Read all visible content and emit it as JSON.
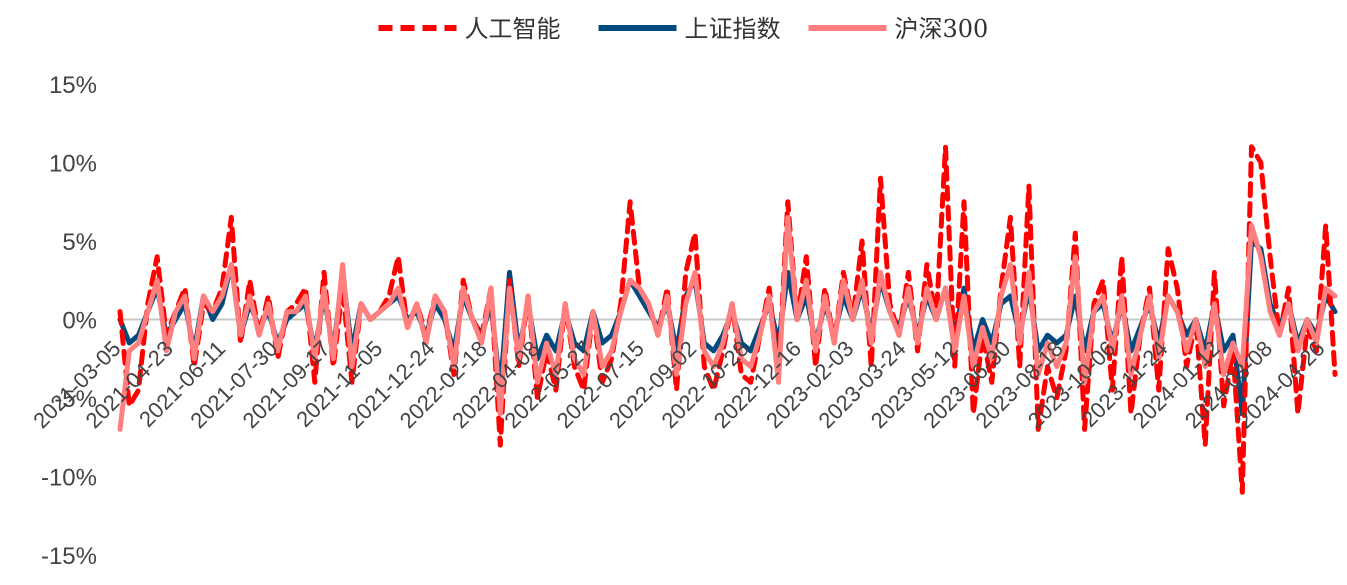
{
  "chart_data": {
    "type": "line",
    "title": "",
    "xlabel": "",
    "ylabel": "",
    "ylim": [
      -0.15,
      0.15
    ],
    "y_ticks": [
      0.15,
      0.1,
      0.05,
      0.0,
      -0.05,
      -0.1,
      -0.15
    ],
    "y_tick_labels": [
      "15%",
      "10%",
      "5%",
      "0%",
      "-5%",
      "-10%",
      "-15%"
    ],
    "grid": false,
    "zero_line": true,
    "legend_position": "top-center",
    "x_tick_labels": [
      "2021-03-05",
      "2021-04-23",
      "2021-06-11",
      "2021-07-30",
      "2021-09-17",
      "2021-11-05",
      "2021-12-24",
      "2022-02-18",
      "2022-04-08",
      "2022-05-27",
      "2022-07-15",
      "2022-09-02",
      "2022-10-28",
      "2022-12-16",
      "2023-02-03",
      "2023-03-24",
      "2023-05-12",
      "2023-06-30",
      "2023-08-18",
      "2023-10-06",
      "2023-11-24",
      "2024-01-12",
      "2024-03-08",
      "2024-04-26"
    ],
    "series": [
      {
        "name": "人工智能",
        "color": "#FF0000",
        "style": "dashed",
        "values": [
          0.005,
          -0.055,
          -0.045,
          0.01,
          0.04,
          -0.01,
          0.005,
          0.02,
          -0.03,
          0.01,
          0.005,
          0.02,
          0.065,
          -0.015,
          0.025,
          -0.01,
          0.015,
          -0.025,
          0.005,
          0.01,
          0.02,
          -0.04,
          0.03,
          -0.03,
          0.02,
          -0.04,
          0.01,
          0.0,
          0.005,
          0.015,
          0.04,
          -0.005,
          0.01,
          -0.01,
          0.015,
          0.005,
          -0.035,
          0.025,
          0.0,
          -0.01,
          0.02,
          -0.08,
          0.025,
          -0.03,
          0.015,
          -0.05,
          -0.02,
          -0.045,
          0.01,
          -0.03,
          -0.045,
          0.005,
          -0.04,
          -0.025,
          0.01,
          0.075,
          0.02,
          0.01,
          -0.01,
          0.02,
          -0.045,
          0.03,
          0.055,
          -0.03,
          -0.045,
          -0.02,
          0.01,
          -0.035,
          -0.04,
          -0.01,
          0.02,
          -0.035,
          0.075,
          0.0,
          0.04,
          -0.03,
          0.02,
          -0.015,
          0.03,
          0.0,
          0.05,
          -0.03,
          0.09,
          0.01,
          -0.01,
          0.03,
          -0.02,
          0.035,
          0.0,
          0.11,
          -0.03,
          0.075,
          -0.06,
          -0.01,
          -0.04,
          0.02,
          0.065,
          -0.03,
          0.085,
          -0.07,
          -0.03,
          -0.05,
          -0.02,
          0.055,
          -0.07,
          0.01,
          0.025,
          -0.045,
          0.04,
          -0.06,
          -0.01,
          0.02,
          -0.045,
          0.045,
          0.02,
          -0.03,
          0.0,
          -0.08,
          0.03,
          -0.055,
          -0.02,
          -0.11,
          0.11,
          0.1,
          0.04,
          -0.01,
          0.02,
          -0.06,
          -0.005,
          -0.02,
          0.06,
          -0.035
        ]
      },
      {
        "name": "上证指数",
        "color": "#004A7F",
        "style": "solid",
        "values": [
          0.0,
          -0.015,
          -0.01,
          0.005,
          0.02,
          -0.01,
          0.0,
          0.01,
          -0.02,
          0.015,
          0.0,
          0.01,
          0.035,
          -0.01,
          0.01,
          -0.005,
          0.005,
          -0.015,
          0.0,
          0.005,
          0.01,
          -0.02,
          0.015,
          -0.02,
          0.03,
          -0.02,
          0.01,
          0.0,
          0.005,
          0.01,
          0.015,
          0.0,
          0.005,
          -0.01,
          0.01,
          0.0,
          -0.02,
          0.015,
          0.0,
          -0.01,
          0.01,
          -0.045,
          0.03,
          -0.02,
          0.01,
          -0.025,
          -0.01,
          -0.02,
          0.005,
          -0.015,
          -0.02,
          0.005,
          -0.015,
          -0.01,
          0.005,
          0.025,
          0.015,
          0.005,
          -0.005,
          0.01,
          -0.02,
          0.015,
          0.025,
          -0.015,
          -0.02,
          -0.01,
          0.005,
          -0.015,
          -0.02,
          -0.005,
          0.01,
          -0.015,
          0.03,
          0.0,
          0.015,
          -0.015,
          0.01,
          -0.01,
          0.015,
          0.0,
          0.02,
          -0.01,
          0.025,
          0.005,
          -0.005,
          0.015,
          -0.01,
          0.015,
          0.0,
          0.02,
          -0.01,
          0.02,
          -0.02,
          0.0,
          -0.015,
          0.01,
          0.015,
          -0.01,
          0.02,
          -0.02,
          -0.01,
          -0.015,
          -0.01,
          0.015,
          -0.02,
          0.005,
          0.01,
          -0.015,
          0.01,
          -0.02,
          -0.005,
          0.01,
          -0.015,
          0.015,
          0.005,
          -0.01,
          0.0,
          -0.02,
          0.01,
          -0.02,
          -0.01,
          -0.06,
          0.05,
          0.045,
          0.01,
          -0.005,
          0.01,
          -0.015,
          0.0,
          -0.01,
          0.015,
          0.005
        ]
      },
      {
        "name": "沪深300",
        "color": "#FF7F7F",
        "style": "solid",
        "values": [
          -0.07,
          -0.02,
          -0.015,
          0.005,
          0.025,
          -0.02,
          0.005,
          0.015,
          -0.025,
          0.015,
          0.005,
          0.015,
          0.035,
          -0.01,
          0.015,
          -0.01,
          0.01,
          -0.02,
          0.005,
          0.005,
          0.015,
          -0.025,
          0.02,
          -0.025,
          0.035,
          -0.03,
          0.01,
          0.0,
          0.005,
          0.01,
          0.02,
          -0.005,
          0.01,
          -0.015,
          0.015,
          0.005,
          -0.03,
          0.02,
          0.0,
          -0.015,
          0.02,
          -0.06,
          0.02,
          -0.025,
          0.015,
          -0.04,
          -0.015,
          -0.035,
          0.01,
          -0.025,
          -0.035,
          0.005,
          -0.03,
          -0.02,
          0.005,
          0.025,
          0.02,
          0.01,
          -0.01,
          0.015,
          -0.035,
          0.01,
          0.03,
          -0.02,
          -0.03,
          -0.015,
          0.01,
          -0.025,
          -0.03,
          -0.01,
          0.015,
          -0.04,
          0.065,
          0.0,
          0.025,
          -0.02,
          0.015,
          -0.015,
          0.025,
          0.0,
          0.025,
          -0.015,
          0.03,
          0.005,
          -0.01,
          0.02,
          -0.015,
          0.02,
          0.0,
          0.02,
          -0.02,
          0.015,
          -0.03,
          -0.005,
          -0.025,
          0.015,
          0.035,
          -0.015,
          0.03,
          -0.035,
          -0.015,
          -0.03,
          -0.015,
          0.04,
          -0.04,
          0.005,
          0.015,
          -0.02,
          0.015,
          -0.035,
          -0.01,
          0.015,
          -0.025,
          0.015,
          0.005,
          -0.02,
          0.0,
          -0.03,
          0.01,
          -0.035,
          -0.015,
          -0.03,
          0.06,
          0.04,
          0.005,
          -0.01,
          0.01,
          -0.02,
          0.0,
          -0.015,
          0.02,
          0.015
        ]
      }
    ]
  }
}
